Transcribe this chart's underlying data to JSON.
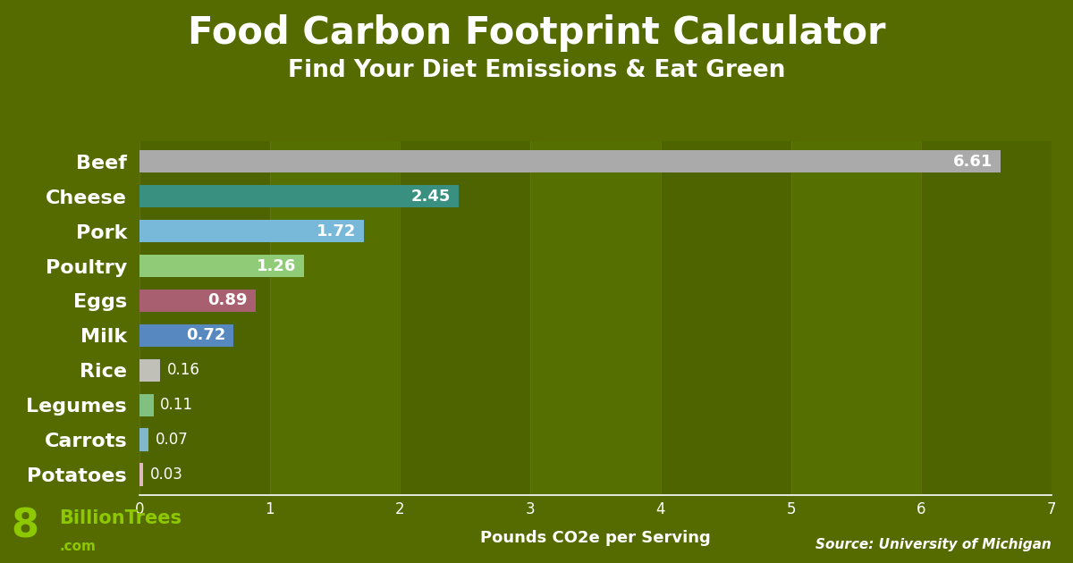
{
  "title": "Food Carbon Footprint Calculator",
  "subtitle": "Find Your Diet Emissions & Eat Green",
  "xlabel": "Pounds CO2e per Serving",
  "source": "Source: University of Michigan",
  "background_color": "#556B00",
  "plot_bg_colors": [
    "#4e6400",
    "#567000"
  ],
  "categories": [
    "Beef",
    "Cheese",
    "Pork",
    "Poultry",
    "Eggs",
    "Milk",
    "Rice",
    "Legumes",
    "Carrots",
    "Potatoes"
  ],
  "values": [
    6.61,
    2.45,
    1.72,
    1.26,
    0.89,
    0.72,
    0.16,
    0.11,
    0.07,
    0.03
  ],
  "bar_colors": [
    "#aaaaaa",
    "#3a9080",
    "#78b8d8",
    "#90cc78",
    "#a86070",
    "#5888c0",
    "#c0c0b8",
    "#80c080",
    "#80b8cc",
    "#e0b8c0"
  ],
  "xlim": [
    0,
    7
  ],
  "xticks": [
    0,
    1,
    2,
    3,
    4,
    5,
    6,
    7
  ],
  "title_color": "#ffffff",
  "label_color": "#ffffff",
  "tick_color": "#ffffff",
  "value_label_color": "#ffffff",
  "title_fontsize": 30,
  "subtitle_fontsize": 19,
  "ylabel_fontsize": 16,
  "xlabel_fontsize": 13,
  "bar_height": 0.65,
  "logo_color": "#8dc800",
  "logo_fontsize_big": 32,
  "logo_fontsize_text": 15,
  "logo_fontsize_com": 11
}
